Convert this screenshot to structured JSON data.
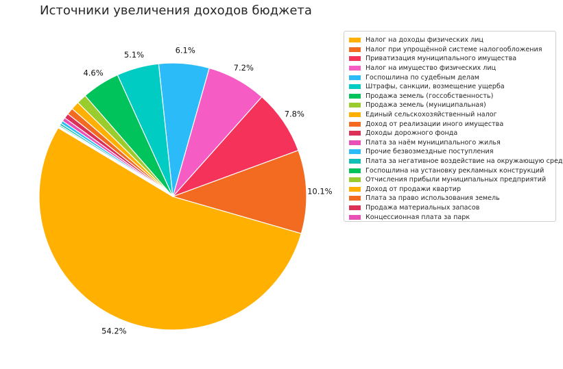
{
  "chart_data": {
    "type": "pie",
    "title": "Источники увеличения доходов бюджета",
    "start_angle_deg": 149,
    "direction": "counterclockwise",
    "legend_position": "right",
    "series": [
      {
        "name": "Налог на доходы физических лиц",
        "value": 54.2,
        "label": "54.2%",
        "color": "#FFB000"
      },
      {
        "name": "Налог при упрощённой системе налогообложения",
        "value": 10.1,
        "label": "10.1%",
        "color": "#F26B21"
      },
      {
        "name": "Приватизация муниципального имущества",
        "value": 7.8,
        "label": "7.8%",
        "color": "#F4325A"
      },
      {
        "name": "Налог на имущество физических лиц",
        "value": 7.2,
        "label": "7.2%",
        "color": "#F55CC4"
      },
      {
        "name": "Госпошлина по судебным делам",
        "value": 6.1,
        "label": "6.1%",
        "color": "#2BBBF8"
      },
      {
        "name": "Штрафы, санкции, возмещение ущерба",
        "value": 5.1,
        "label": "5.1%",
        "color": "#00CCC4"
      },
      {
        "name": "Продажа земель (госсобственность)",
        "value": 4.6,
        "label": "4.6%",
        "color": "#00C45B"
      },
      {
        "name": "Продажа земель (муниципальная)",
        "value": 1.2,
        "label": "",
        "color": "#9BCC2E"
      },
      {
        "name": "Единый сельскохозяйственный налог",
        "value": 1.0,
        "label": "",
        "color": "#FFB000"
      },
      {
        "name": "Доход от реализации иного имущества",
        "value": 0.8,
        "label": "",
        "color": "#F26B21"
      },
      {
        "name": "Доходы дорожного фонда",
        "value": 0.6,
        "label": "",
        "color": "#DC3057"
      },
      {
        "name": "Плата за наём муниципального жилья",
        "value": 0.45,
        "label": "",
        "color": "#E94FB6"
      },
      {
        "name": "Прочие безвозмездные поступления",
        "value": 0.35,
        "label": "",
        "color": "#2BBBF8"
      },
      {
        "name": "Плата за негативное воздействие на окружающую среду",
        "value": 0.25,
        "label": "",
        "color": "#12BFB7"
      },
      {
        "name": "Госпошлина на установку рекламных конструкций",
        "value": 0.15,
        "label": "",
        "color": "#00C45B"
      },
      {
        "name": "Отчисления прибыли муниципальных предприятий",
        "value": 0.1,
        "label": "",
        "color": "#9BCC2E"
      },
      {
        "name": "Доход от продажи квартир",
        "value": 0.05,
        "label": "",
        "color": "#FFB000"
      },
      {
        "name": "Плата за право использования земель",
        "value": 0.03,
        "label": "",
        "color": "#F26B21"
      },
      {
        "name": "Продажа материальных запасов",
        "value": 0.02,
        "label": "",
        "color": "#DC3057"
      },
      {
        "name": "Концессионная плата за парк",
        "value": 0.01,
        "label": "",
        "color": "#E94FB6"
      }
    ]
  }
}
